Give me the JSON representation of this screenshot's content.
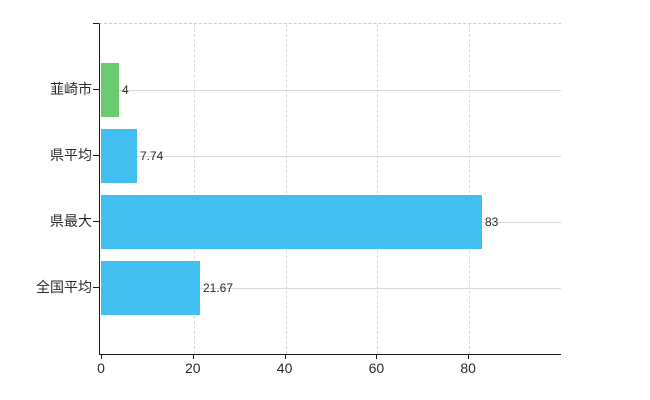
{
  "chart": {
    "background_color": "#ffffff",
    "axis_color": "#1a1a1a",
    "gridline_color": "#d9d9d9",
    "text_color": "#2b2b2b",
    "accent_green": "#6bc96e",
    "accent_blue": "#41bff0"
  },
  "chart_data": {
    "type": "bar",
    "orientation": "horizontal",
    "title": "",
    "xlabel": "",
    "ylabel": "",
    "categories": [
      "韮崎市",
      "県平均",
      "県最大",
      "全国平均"
    ],
    "values": [
      4,
      7.74,
      83,
      21.67
    ],
    "value_labels": [
      "4",
      "7.74",
      "83",
      "21.67"
    ],
    "bar_colors": [
      "#6bc96e",
      "#41bff0",
      "#41bff0",
      "#41bff0"
    ],
    "x_tick_labels": [
      "0",
      "20",
      "40",
      "60",
      "80"
    ],
    "x_tick_values": [
      0,
      20,
      40,
      60,
      80
    ],
    "xlim": [
      0,
      100
    ],
    "grid": true,
    "legend": false
  }
}
